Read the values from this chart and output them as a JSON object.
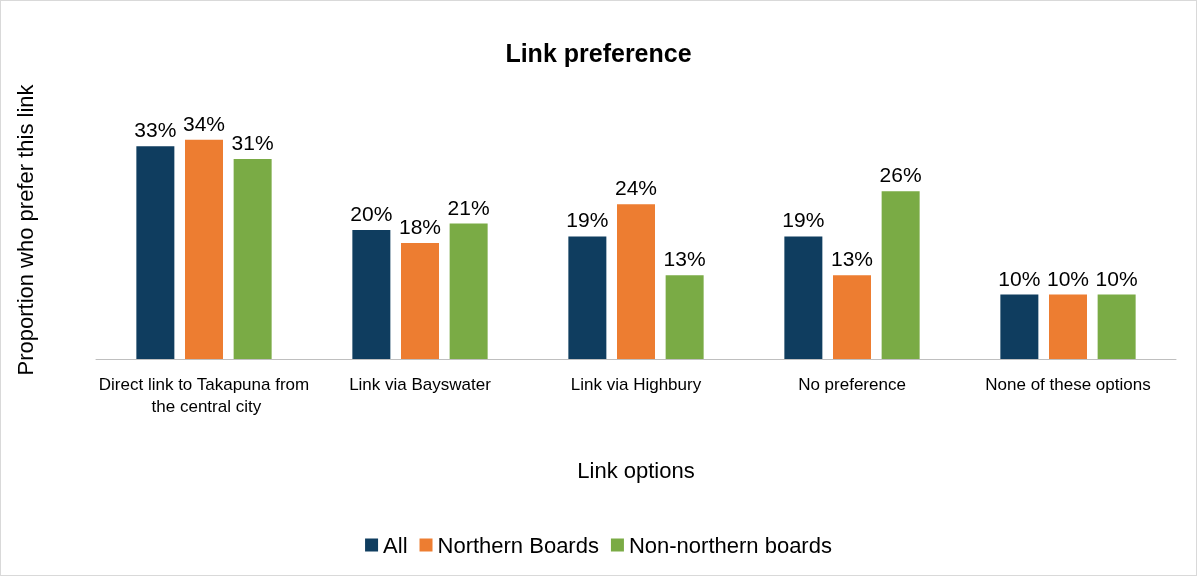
{
  "chart_data": {
    "type": "bar",
    "title": "Link preference",
    "xlabel": "Link options",
    "ylabel": "Proportion who prefer this link",
    "categories": [
      "Direct link to Takapuna from the central city",
      "Link via Bayswater",
      "Link via Highbury",
      "No preference",
      "None of these options"
    ],
    "series": [
      {
        "name": "All",
        "color": "#0f3d5f",
        "values": [
          33,
          20,
          19,
          19,
          10
        ],
        "value_labels": [
          "33%",
          "20%",
          "19%",
          "19%",
          "10%"
        ]
      },
      {
        "name": "Northern Boards",
        "color": "#ed7d31",
        "values": [
          34,
          18,
          24,
          13,
          10
        ],
        "value_labels": [
          "34%",
          "18%",
          "24%",
          "13%",
          "10%"
        ]
      },
      {
        "name": "Non-northern boards",
        "color": "#7aab45",
        "values": [
          31,
          21,
          13,
          26,
          10
        ],
        "value_labels": [
          "31%",
          "21%",
          "13%",
          "26%",
          "10%"
        ]
      }
    ],
    "legend": "bottom",
    "grid": false
  }
}
